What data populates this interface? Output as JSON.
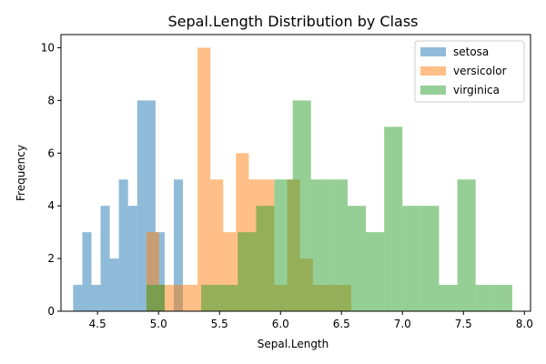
{
  "chart_data": {
    "type": "histogram",
    "title": "Sepal.Length Distribution by Class",
    "xlabel": "Sepal.Length",
    "ylabel": "Frequency",
    "xlim": [
      4.2,
      8.05
    ],
    "ylim": [
      0,
      10.5
    ],
    "xticks": [
      "4.5",
      "5.0",
      "5.5",
      "6.0",
      "6.5",
      "7.0",
      "7.5",
      "8.0"
    ],
    "yticks": [
      "0",
      "2",
      "4",
      "6",
      "8",
      "10"
    ],
    "grid": false,
    "legend_position": "top-right",
    "series": [
      {
        "name": "setosa",
        "color": "#1f77b4",
        "bin_start": 4.3,
        "bin_width": 0.075,
        "counts": [
          1,
          3,
          1,
          4,
          2,
          5,
          4,
          8,
          8,
          3,
          0,
          5,
          0,
          0
        ]
      },
      {
        "name": "versicolor",
        "color": "#ff7f0e",
        "bin_start": 4.9,
        "bin_width": 0.105,
        "counts": [
          3,
          1,
          1,
          1,
          10,
          5,
          3,
          6,
          5,
          5,
          1,
          5,
          2,
          1,
          1,
          1,
          0,
          0,
          0,
          0
        ]
      },
      {
        "name": "virginica",
        "color": "#2ca02c",
        "bin_start": 4.9,
        "bin_width": 0.15,
        "counts": [
          1,
          0,
          0,
          1,
          1,
          3,
          4,
          5,
          8,
          5,
          5,
          4,
          3,
          7,
          4,
          4,
          1,
          5,
          1,
          1
        ]
      }
    ]
  }
}
